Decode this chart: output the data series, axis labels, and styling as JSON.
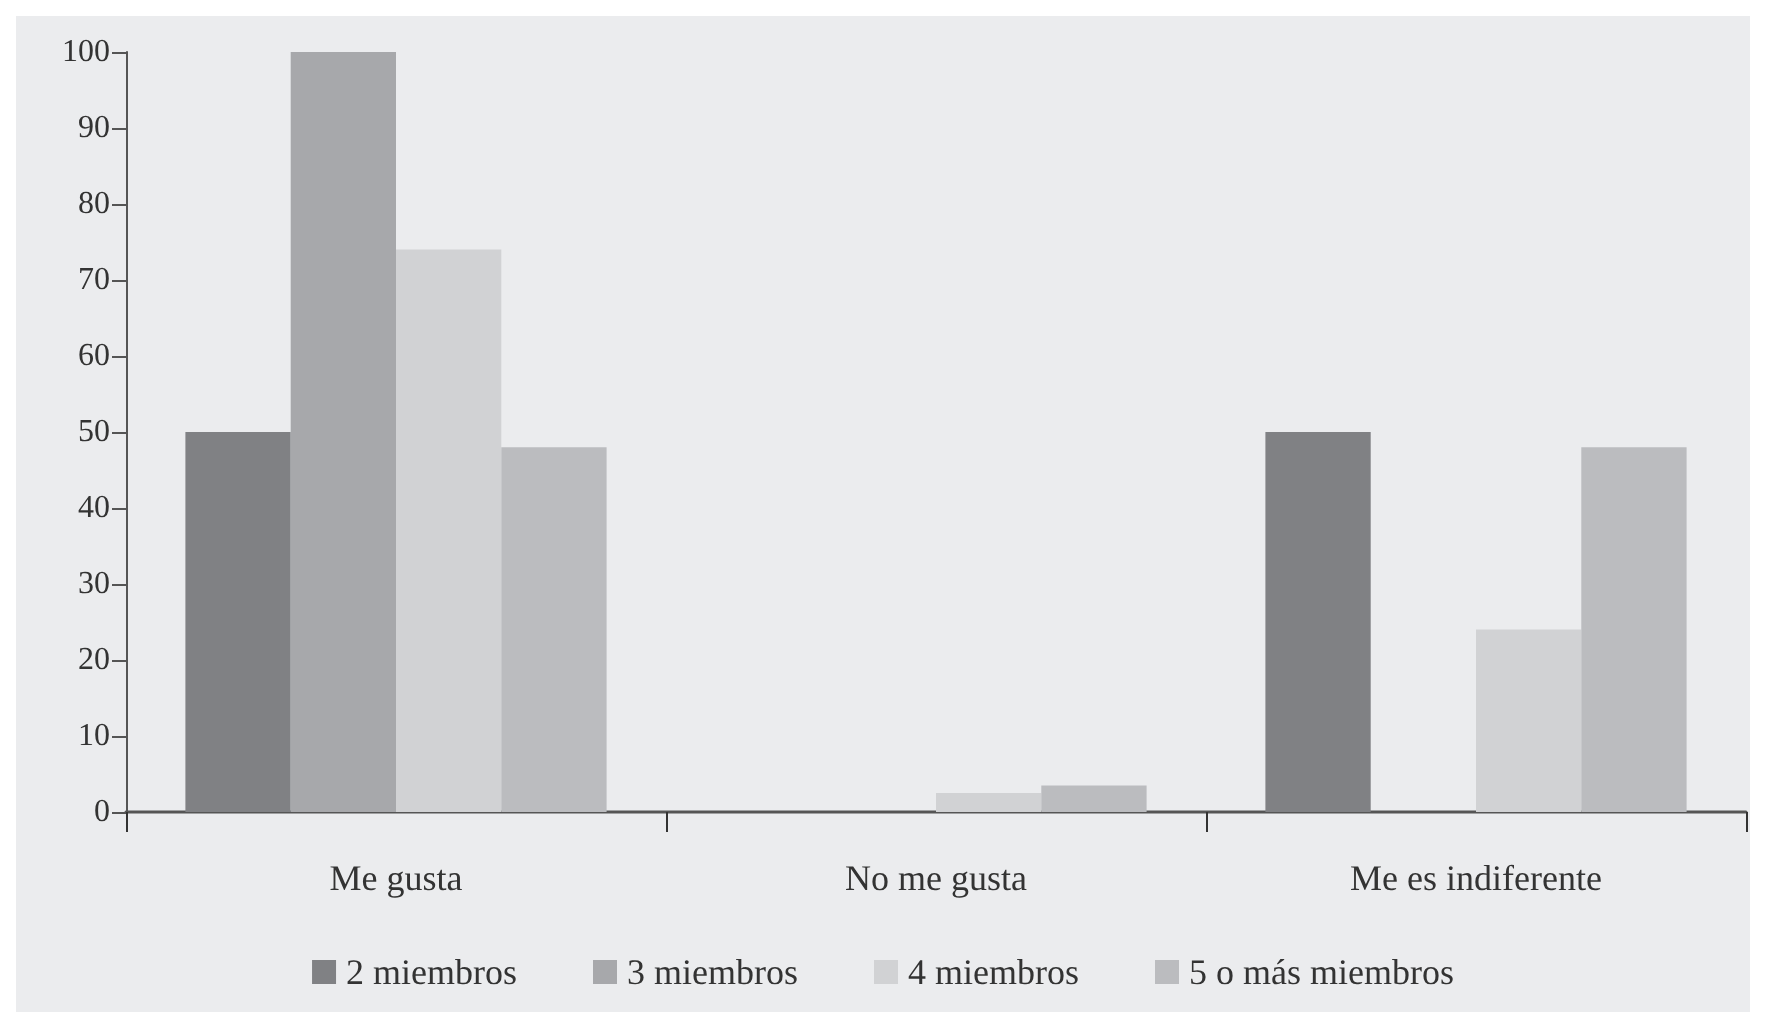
{
  "chart_data": {
    "type": "bar",
    "categories": [
      "Me gusta",
      "No me gusta",
      "Me es indiferente"
    ],
    "series": [
      {
        "name": "2 miembros",
        "color": "#808184",
        "values": [
          50,
          0,
          50
        ]
      },
      {
        "name": "3 miembros",
        "color": "#a7a8ab",
        "values": [
          100,
          0,
          0
        ]
      },
      {
        "name": "4 miembros",
        "color": "#d1d2d4",
        "values": [
          74,
          2.5,
          24
        ]
      },
      {
        "name": "5 o más miembros",
        "color": "#bbbcbf",
        "values": [
          48,
          3.5,
          48
        ]
      }
    ],
    "ylim": [
      0,
      100
    ],
    "yticks": [
      0,
      10,
      20,
      30,
      40,
      50,
      60,
      70,
      80,
      90,
      100
    ],
    "grid": false,
    "legend": "bottom"
  }
}
